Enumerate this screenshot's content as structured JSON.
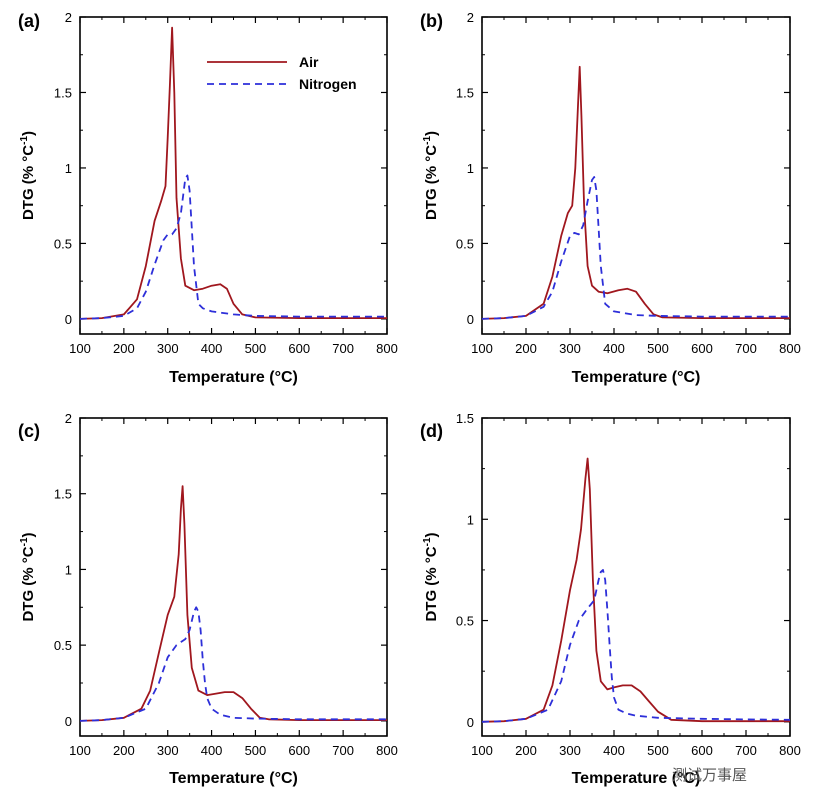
{
  "watermark": "测试万事屋",
  "chart_data": [
    {
      "type": "line",
      "panel_label": "(a)",
      "xlabel": "Temperature (°C)",
      "ylabel": "DTG (% °C",
      "ylabel_sup": "-1",
      "ylabel_end": ")",
      "xlim": [
        100,
        800
      ],
      "ylim": [
        -0.1,
        2
      ],
      "xticks": [
        100,
        200,
        300,
        400,
        500,
        600,
        700,
        800
      ],
      "yticks": [
        0,
        0.5,
        1,
        1.5,
        2
      ],
      "ytick_labels": [
        "0",
        "0.5",
        "1",
        "1.5",
        "2"
      ],
      "legend": [
        {
          "name": "Air",
          "style": "solid"
        },
        {
          "name": "Nitrogen",
          "style": "dashed"
        }
      ],
      "series": [
        {
          "name": "Air",
          "color": "#a0171e",
          "style": "solid",
          "x": [
            100,
            150,
            200,
            230,
            250,
            270,
            285,
            295,
            300,
            305,
            310,
            315,
            320,
            330,
            340,
            360,
            380,
            400,
            420,
            435,
            450,
            470,
            500,
            600,
            700,
            800
          ],
          "y": [
            0,
            0.005,
            0.03,
            0.13,
            0.35,
            0.65,
            0.78,
            0.88,
            1.2,
            1.55,
            1.93,
            1.5,
            0.8,
            0.4,
            0.22,
            0.19,
            0.2,
            0.22,
            0.23,
            0.2,
            0.1,
            0.03,
            0.01,
            0.005,
            0.005,
            0.005
          ]
        },
        {
          "name": "Nitrogen",
          "color": "#2d2fd9",
          "style": "dashed",
          "x": [
            100,
            150,
            200,
            230,
            250,
            270,
            290,
            300,
            310,
            320,
            330,
            340,
            345,
            350,
            355,
            360,
            370,
            380,
            400,
            450,
            500,
            600,
            700,
            800
          ],
          "y": [
            0,
            0.005,
            0.02,
            0.07,
            0.18,
            0.36,
            0.52,
            0.56,
            0.56,
            0.6,
            0.7,
            0.93,
            0.95,
            0.85,
            0.6,
            0.35,
            0.1,
            0.07,
            0.05,
            0.03,
            0.02,
            0.015,
            0.015,
            0.015
          ]
        }
      ]
    },
    {
      "type": "line",
      "panel_label": "(b)",
      "xlabel": "Temperature (°C)",
      "ylabel": "DTG (% °C",
      "ylabel_sup": "-1",
      "ylabel_end": ")",
      "xlim": [
        100,
        800
      ],
      "ylim": [
        -0.1,
        2
      ],
      "xticks": [
        100,
        200,
        300,
        400,
        500,
        600,
        700,
        800
      ],
      "yticks": [
        0,
        0.5,
        1,
        1.5,
        2
      ],
      "ytick_labels": [
        "0",
        "0.5",
        "1",
        "1.5",
        "2"
      ],
      "series": [
        {
          "name": "Air",
          "color": "#a0171e",
          "style": "solid",
          "x": [
            100,
            150,
            200,
            240,
            260,
            280,
            295,
            305,
            312,
            318,
            322,
            326,
            332,
            340,
            350,
            365,
            385,
            410,
            430,
            450,
            470,
            490,
            510,
            600,
            700,
            800
          ],
          "y": [
            0,
            0.005,
            0.02,
            0.1,
            0.28,
            0.55,
            0.7,
            0.75,
            1.0,
            1.4,
            1.67,
            1.35,
            0.75,
            0.35,
            0.22,
            0.18,
            0.17,
            0.19,
            0.2,
            0.18,
            0.1,
            0.03,
            0.01,
            0.005,
            0.005,
            0.005
          ]
        },
        {
          "name": "Nitrogen",
          "color": "#2d2fd9",
          "style": "dashed",
          "x": [
            100,
            150,
            200,
            240,
            260,
            280,
            300,
            310,
            320,
            330,
            340,
            350,
            355,
            360,
            365,
            370,
            380,
            400,
            450,
            500,
            600,
            700,
            800
          ],
          "y": [
            0,
            0.005,
            0.02,
            0.08,
            0.18,
            0.38,
            0.55,
            0.57,
            0.56,
            0.62,
            0.78,
            0.92,
            0.94,
            0.85,
            0.6,
            0.35,
            0.1,
            0.05,
            0.025,
            0.02,
            0.015,
            0.015,
            0.015
          ]
        }
      ]
    },
    {
      "type": "line",
      "panel_label": "(c)",
      "xlabel": "Temperature (°C)",
      "ylabel": "DTG (% °C",
      "ylabel_sup": "-1",
      "ylabel_end": ")",
      "xlim": [
        100,
        800
      ],
      "ylim": [
        -0.1,
        2
      ],
      "xticks": [
        100,
        200,
        300,
        400,
        500,
        600,
        700,
        800
      ],
      "yticks": [
        0,
        0.5,
        1,
        1.5,
        2
      ],
      "ytick_labels": [
        "0",
        "0.5",
        "1",
        "1.5",
        "2"
      ],
      "series": [
        {
          "name": "Air",
          "color": "#a0171e",
          "style": "solid",
          "x": [
            100,
            150,
            200,
            240,
            260,
            280,
            300,
            315,
            325,
            330,
            334,
            338,
            345,
            355,
            370,
            390,
            410,
            430,
            450,
            470,
            490,
            510,
            530,
            600,
            700,
            800
          ],
          "y": [
            0,
            0.005,
            0.02,
            0.08,
            0.2,
            0.45,
            0.7,
            0.82,
            1.1,
            1.4,
            1.55,
            1.3,
            0.7,
            0.35,
            0.2,
            0.17,
            0.18,
            0.19,
            0.19,
            0.15,
            0.08,
            0.02,
            0.01,
            0.005,
            0.005,
            0.005
          ]
        },
        {
          "name": "Nitrogen",
          "color": "#2d2fd9",
          "style": "dashed",
          "x": [
            100,
            150,
            200,
            250,
            280,
            300,
            320,
            340,
            350,
            360,
            365,
            370,
            375,
            380,
            385,
            390,
            400,
            420,
            450,
            500,
            600,
            700,
            800
          ],
          "y": [
            0,
            0.005,
            0.02,
            0.08,
            0.25,
            0.42,
            0.5,
            0.54,
            0.6,
            0.72,
            0.75,
            0.72,
            0.6,
            0.4,
            0.25,
            0.15,
            0.08,
            0.04,
            0.02,
            0.015,
            0.01,
            0.01,
            0.01
          ]
        }
      ]
    },
    {
      "type": "line",
      "panel_label": "(d)",
      "xlabel": "Temperature (°C)",
      "ylabel": "DTG (% °C",
      "ylabel_sup": "-1",
      "ylabel_end": ")",
      "xlim": [
        100,
        800
      ],
      "ylim": [
        -0.07,
        1.5
      ],
      "xticks": [
        100,
        200,
        300,
        400,
        500,
        600,
        700,
        800
      ],
      "yticks": [
        0,
        0.5,
        1,
        1.5
      ],
      "ytick_labels": [
        "0",
        "0.5",
        "1",
        "1.5"
      ],
      "series": [
        {
          "name": "Air",
          "color": "#a0171e",
          "style": "solid",
          "x": [
            100,
            150,
            200,
            240,
            260,
            280,
            300,
            315,
            325,
            335,
            340,
            345,
            352,
            360,
            370,
            385,
            400,
            420,
            440,
            460,
            480,
            500,
            530,
            600,
            700,
            800
          ],
          "y": [
            0,
            0.003,
            0.015,
            0.06,
            0.18,
            0.4,
            0.65,
            0.8,
            0.95,
            1.2,
            1.3,
            1.15,
            0.7,
            0.35,
            0.2,
            0.16,
            0.17,
            0.18,
            0.18,
            0.15,
            0.1,
            0.05,
            0.01,
            0.003,
            0.003,
            0.003
          ]
        },
        {
          "name": "Nitrogen",
          "color": "#2d2fd9",
          "style": "dashed",
          "x": [
            100,
            150,
            200,
            250,
            280,
            300,
            320,
            340,
            355,
            365,
            370,
            375,
            380,
            385,
            390,
            395,
            400,
            410,
            430,
            450,
            500,
            600,
            700,
            800
          ],
          "y": [
            0,
            0.003,
            0.015,
            0.06,
            0.2,
            0.38,
            0.5,
            0.56,
            0.6,
            0.7,
            0.74,
            0.75,
            0.7,
            0.55,
            0.38,
            0.22,
            0.12,
            0.06,
            0.04,
            0.03,
            0.02,
            0.015,
            0.012,
            0.01
          ]
        }
      ]
    }
  ]
}
